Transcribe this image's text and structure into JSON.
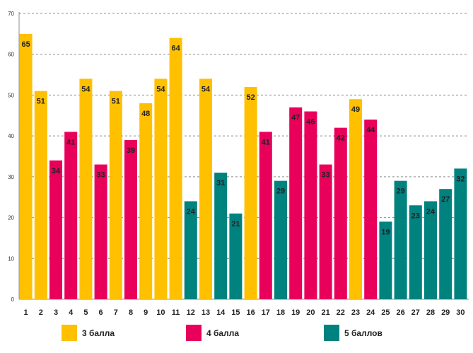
{
  "chart_data": {
    "type": "bar",
    "title": "",
    "xlabel": "",
    "ylabel": "",
    "ylim": [
      0,
      70
    ],
    "yticks": [
      0,
      10,
      20,
      30,
      40,
      50,
      60,
      70
    ],
    "grid": true,
    "categories": [
      "1",
      "2",
      "3",
      "4",
      "5",
      "6",
      "7",
      "8",
      "9",
      "10",
      "11",
      "12",
      "13",
      "14",
      "15",
      "16",
      "17",
      "18",
      "19",
      "20",
      "21",
      "22",
      "23",
      "24",
      "25",
      "26",
      "27",
      "28",
      "29",
      "30"
    ],
    "values": [
      65,
      51,
      34,
      41,
      54,
      33,
      51,
      39,
      48,
      54,
      64,
      24,
      54,
      31,
      21,
      52,
      41,
      29,
      47,
      46,
      33,
      42,
      49,
      44,
      19,
      29,
      23,
      24,
      27,
      32
    ],
    "grades": [
      "3 балла",
      "3 балла",
      "4 балла",
      "4 балла",
      "3 балла",
      "4 балла",
      "3 балла",
      "4 балла",
      "3 балла",
      "3 балла",
      "3 балла",
      "5 баллов",
      "3 балла",
      "5 баллов",
      "5 баллов",
      "3 балла",
      "4 балла",
      "5 баллов",
      "4 балла",
      "4 балла",
      "4 балла",
      "4 балла",
      "3 балла",
      "4 балла",
      "5 баллов",
      "5 баллов",
      "5 баллов",
      "5 баллов",
      "5 баллов",
      "5 баллов"
    ],
    "legend": [
      {
        "label": "3 балла",
        "color": "#FFC000"
      },
      {
        "label": "4 балла",
        "color": "#E8005A"
      },
      {
        "label": "5 баллов",
        "color": "#00827F"
      }
    ],
    "legend_position": "bottom"
  }
}
